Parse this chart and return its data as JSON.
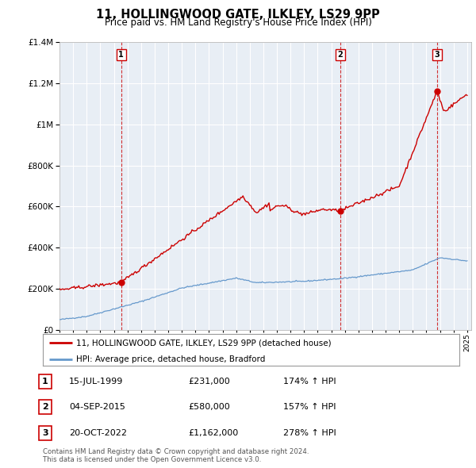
{
  "title": "11, HOLLINGWOOD GATE, ILKLEY, LS29 9PP",
  "subtitle": "Price paid vs. HM Land Registry's House Price Index (HPI)",
  "legend_line1": "11, HOLLINGWOOD GATE, ILKLEY, LS29 9PP (detached house)",
  "legend_line2": "HPI: Average price, detached house, Bradford",
  "table_rows": [
    {
      "num": "1",
      "date": "15-JUL-1999",
      "price": "£231,000",
      "hpi": "174% ↑ HPI"
    },
    {
      "num": "2",
      "date": "04-SEP-2015",
      "price": "£580,000",
      "hpi": "157% ↑ HPI"
    },
    {
      "num": "3",
      "date": "20-OCT-2022",
      "price": "£1,162,000",
      "hpi": "278% ↑ HPI"
    }
  ],
  "footnote1": "Contains HM Land Registry data © Crown copyright and database right 2024.",
  "footnote2": "This data is licensed under the Open Government Licence v3.0.",
  "sale_color": "#cc0000",
  "hpi_color": "#6699cc",
  "grid_color": "#cccccc",
  "chart_bg": "#e8eef5",
  "background_color": "#ffffff",
  "ylim": [
    0,
    1400000
  ],
  "yticks": [
    0,
    200000,
    400000,
    600000,
    800000,
    1000000,
    1200000,
    1400000
  ],
  "sale_years": [
    1999.54,
    2015.67,
    2022.79
  ],
  "sale_prices": [
    231000,
    580000,
    1162000
  ],
  "sale_labels": [
    "1",
    "2",
    "3"
  ]
}
